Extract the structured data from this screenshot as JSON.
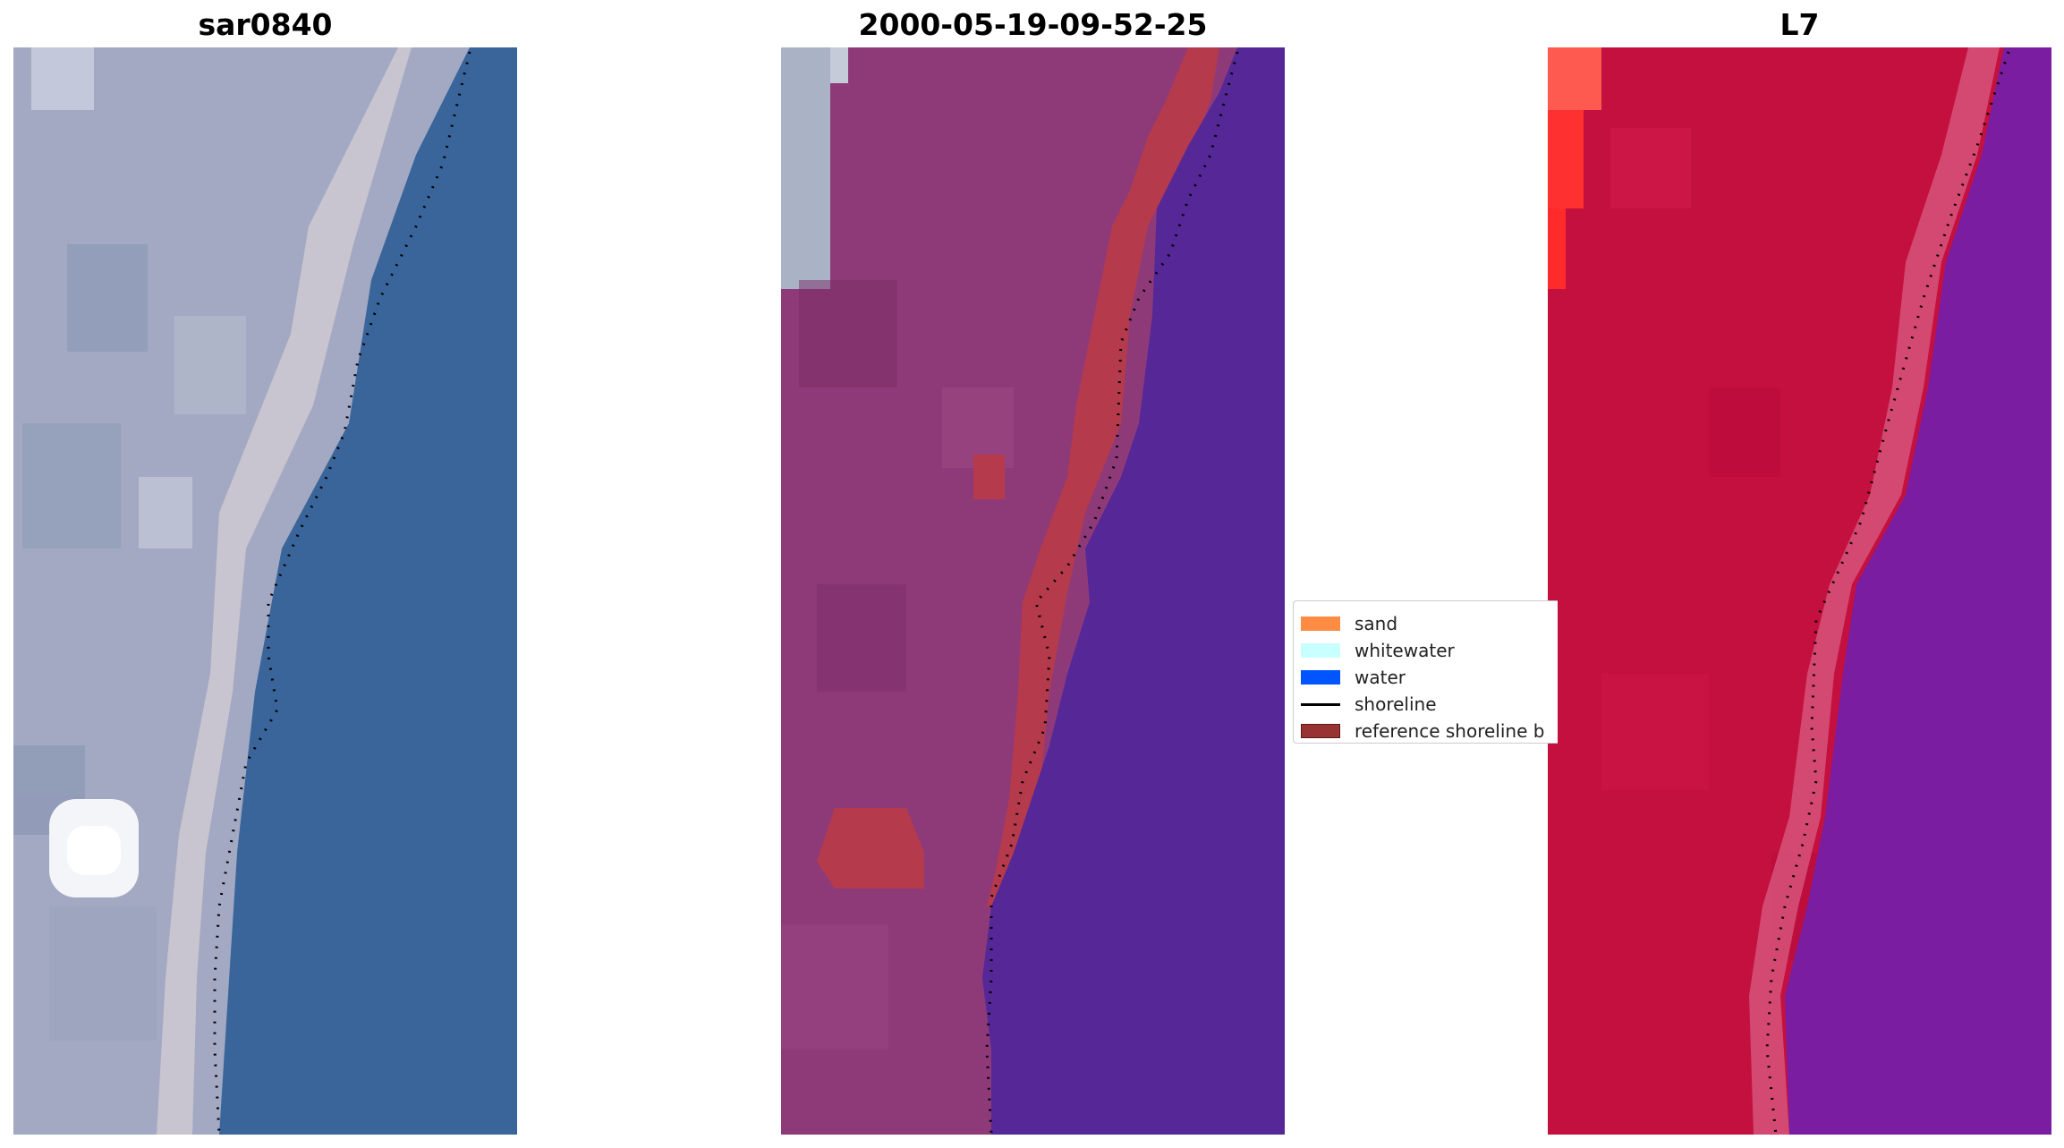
{
  "panels": [
    {
      "title": "sar0840",
      "style": "rgb"
    },
    {
      "title": "2000-05-19-09-52-25",
      "style": "classified"
    },
    {
      "title": "L7",
      "style": "falsecolor"
    }
  ],
  "legend": {
    "items": [
      {
        "label": "sand",
        "color": "#ff8c42",
        "kind": "patch"
      },
      {
        "label": "whitewater",
        "color": "#c8ffff",
        "kind": "patch"
      },
      {
        "label": "water",
        "color": "#0055ff",
        "kind": "patch"
      },
      {
        "label": "shoreline",
        "color": "#000000",
        "kind": "line"
      },
      {
        "label": "reference shoreline b",
        "color": "#993333",
        "kind": "patch"
      }
    ]
  },
  "colors": {
    "rgb_land": "#a3a9c2",
    "rgb_beach": "#cfc9d2",
    "rgb_water": "#3a659a",
    "class_land": "#8f3a78",
    "class_reference": "#b53a4c",
    "class_water": "#552797",
    "class_gray": "#aab2c6",
    "false_land": "#c4103e",
    "false_water": "#7a1da0",
    "false_bright": "#ff3030"
  }
}
